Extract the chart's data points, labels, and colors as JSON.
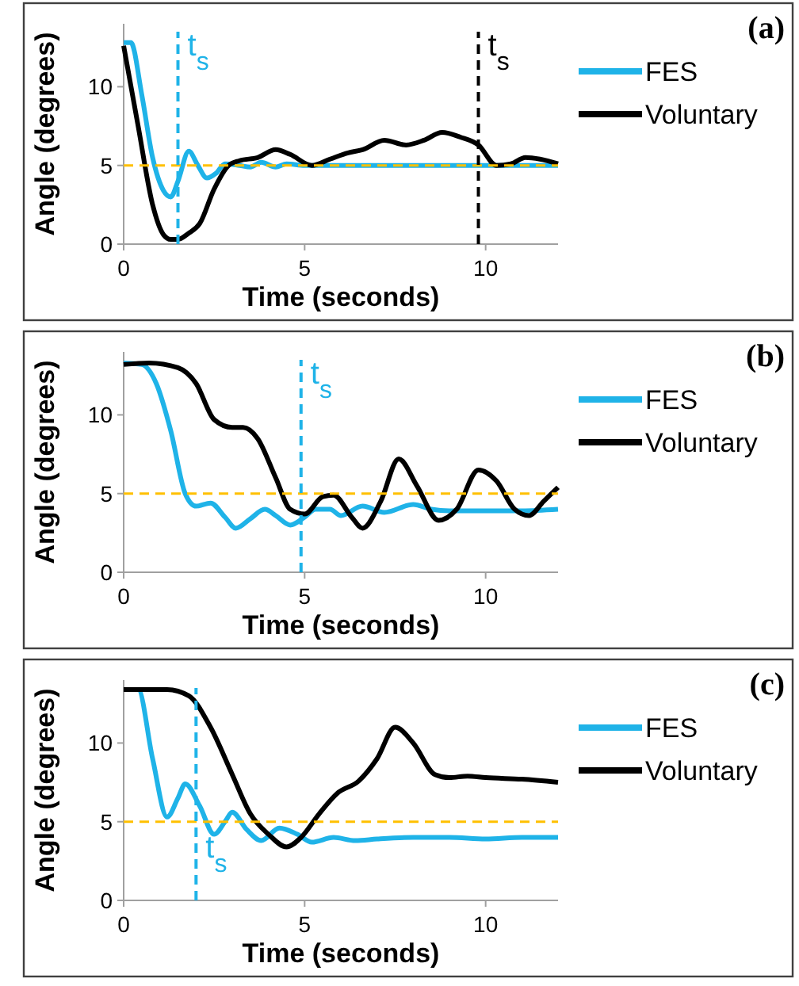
{
  "chart_data": [
    {
      "type": "line",
      "xlabel": "Time (seconds)",
      "ylabel": "Angle (degrees)",
      "xlim": [
        0,
        12
      ],
      "xticks": [
        0,
        5,
        10
      ],
      "ylim": [
        0,
        14
      ],
      "yticks": [
        0,
        5,
        10
      ],
      "legend": "right",
      "grid": false,
      "series": [
        {
          "name": "FES",
          "color": "#1fb3e8",
          "x": [
            0,
            0.2,
            0.5,
            0.8,
            1.1,
            1.3,
            1.5,
            1.8,
            2.05,
            2.3,
            2.55,
            2.8,
            3.2,
            3.5,
            3.8,
            4.2,
            4.5,
            5,
            6,
            7,
            8,
            9,
            10,
            11,
            12
          ],
          "values": [
            12.8,
            12.8,
            9.5,
            5.5,
            3.4,
            3.0,
            4.0,
            5.9,
            5.0,
            4.2,
            4.5,
            5.1,
            5.0,
            4.9,
            5.2,
            4.9,
            5.1,
            5.0,
            5.0,
            5.0,
            5.0,
            5.0,
            5.0,
            5.0,
            5.0
          ]
        },
        {
          "name": "Voluntary",
          "color": "#000000",
          "x": [
            0,
            0.4,
            0.8,
            1.1,
            1.3,
            1.5,
            1.8,
            2.1,
            2.5,
            2.9,
            3.2,
            3.7,
            4.2,
            4.6,
            5.2,
            5.7,
            6.2,
            6.6,
            7.2,
            7.8,
            8.3,
            8.8,
            9.3,
            9.8,
            10.3,
            10.7,
            11.1,
            11.5,
            12
          ],
          "values": [
            12.6,
            7.5,
            2.5,
            0.6,
            0.3,
            0.3,
            0.7,
            1.3,
            3.5,
            5.0,
            5.3,
            5.5,
            6.0,
            5.7,
            5.0,
            5.4,
            5.8,
            6.0,
            6.6,
            6.3,
            6.6,
            7.1,
            6.8,
            6.3,
            5.0,
            5.1,
            5.5,
            5.4,
            5.1
          ]
        }
      ],
      "ref_lines": [
        {
          "axis": "y",
          "value": 5,
          "color": "#ffc000",
          "line_style": "dashed"
        },
        {
          "axis": "x",
          "value": 1.5,
          "color": "#1fb3e8",
          "line_style": "dashed"
        },
        {
          "axis": "x",
          "value": 9.8,
          "color": "#000000",
          "line_style": "dashed"
        }
      ],
      "annotations": [
        "(a)",
        {
          "text": "t$_{s}$",
          "x": 1.5,
          "y": 12
        },
        {
          "text": "t$_{s}$",
          "x": 9.8,
          "y": 12
        }
      ]
    },
    {
      "type": "line",
      "xlabel": "Time (seconds)",
      "ylabel": "Angle (degrees)",
      "xlim": [
        0,
        12
      ],
      "xticks": [
        0,
        5,
        10
      ],
      "ylim": [
        0,
        14
      ],
      "yticks": [
        0,
        5,
        10
      ],
      "legend": "right",
      "grid": false,
      "series": [
        {
          "name": "FES",
          "color": "#1fb3e8",
          "x": [
            0,
            0.5,
            0.9,
            1.3,
            1.7,
            2.0,
            2.4,
            2.8,
            3.1,
            3.5,
            3.9,
            4.2,
            4.6,
            5.0,
            5.3,
            5.7,
            6.0,
            6.6,
            7.2,
            8.0,
            8.5,
            9.0,
            10,
            11,
            12
          ],
          "values": [
            13.3,
            13.2,
            12.0,
            9.0,
            5.0,
            4.2,
            4.4,
            3.5,
            2.8,
            3.4,
            4.0,
            3.6,
            3.0,
            3.5,
            4.0,
            4.0,
            3.6,
            4.2,
            3.8,
            4.3,
            4.0,
            3.9,
            3.9,
            3.9,
            4.0
          ]
        },
        {
          "name": "Voluntary",
          "color": "#000000",
          "x": [
            0,
            0.7,
            1.5,
            2.0,
            2.5,
            3.0,
            3.3,
            3.7,
            4.2,
            4.6,
            5.0,
            5.5,
            5.8,
            6.3,
            6.6,
            7.1,
            7.6,
            8.1,
            8.7,
            9.2,
            9.8,
            10.3,
            10.8,
            11.2,
            11.6,
            12
          ],
          "values": [
            13.2,
            13.3,
            13.0,
            12.0,
            9.7,
            9.2,
            9.2,
            8.5,
            6.0,
            4.0,
            3.7,
            4.8,
            4.9,
            3.5,
            2.8,
            4.5,
            7.2,
            5.5,
            3.3,
            4.0,
            6.5,
            5.8,
            4.0,
            3.6,
            4.5,
            5.4
          ]
        }
      ],
      "ref_lines": [
        {
          "axis": "y",
          "value": 5,
          "color": "#ffc000",
          "line_style": "dashed"
        },
        {
          "axis": "x",
          "value": 4.9,
          "color": "#1fb3e8",
          "line_style": "dashed"
        }
      ],
      "annotations": [
        "(b)",
        {
          "text": "t$_{s}$",
          "x": 4.9,
          "y": 12
        }
      ]
    },
    {
      "type": "line",
      "xlabel": "Time (seconds)",
      "ylabel": "Angle (degrees)",
      "xlim": [
        0,
        12
      ],
      "xticks": [
        0,
        5,
        10
      ],
      "ylim": [
        0,
        14
      ],
      "yticks": [
        0,
        5,
        10
      ],
      "legend": "right",
      "grid": false,
      "series": [
        {
          "name": "FES",
          "color": "#1fb3e8",
          "x": [
            0,
            0.4,
            0.8,
            1.2,
            1.5,
            1.7,
            2.1,
            2.5,
            2.8,
            3.0,
            3.4,
            3.8,
            4.3,
            4.8,
            5.2,
            5.8,
            6.4,
            7,
            8,
            9,
            10,
            11,
            12
          ],
          "values": [
            13.4,
            13.4,
            9.0,
            5.3,
            6.5,
            7.4,
            6.0,
            4.2,
            5.0,
            5.6,
            4.5,
            3.8,
            4.6,
            4.2,
            3.7,
            4.0,
            3.8,
            3.9,
            4.0,
            4.0,
            3.9,
            4.0,
            4.0
          ]
        },
        {
          "name": "Voluntary",
          "color": "#000000",
          "x": [
            0,
            1.2,
            1.8,
            2.4,
            3.0,
            3.5,
            4.0,
            4.5,
            4.9,
            5.4,
            5.9,
            6.5,
            7.0,
            7.5,
            8.0,
            8.6,
            9.0,
            9.5,
            10,
            11,
            12
          ],
          "values": [
            13.4,
            13.4,
            13.0,
            11.0,
            8.0,
            5.5,
            4.2,
            3.4,
            4.0,
            5.5,
            6.8,
            7.6,
            9.0,
            11.0,
            10.0,
            8.0,
            7.8,
            7.9,
            7.8,
            7.7,
            7.5
          ]
        }
      ],
      "ref_lines": [
        {
          "axis": "y",
          "value": 5,
          "color": "#ffc000",
          "line_style": "dashed"
        },
        {
          "axis": "x",
          "value": 2.0,
          "color": "#1fb3e8",
          "line_style": "dashed"
        }
      ],
      "annotations": [
        "(c)",
        {
          "text": "t$_{s}$",
          "x": 2.0,
          "y": 2.7
        }
      ]
    }
  ]
}
